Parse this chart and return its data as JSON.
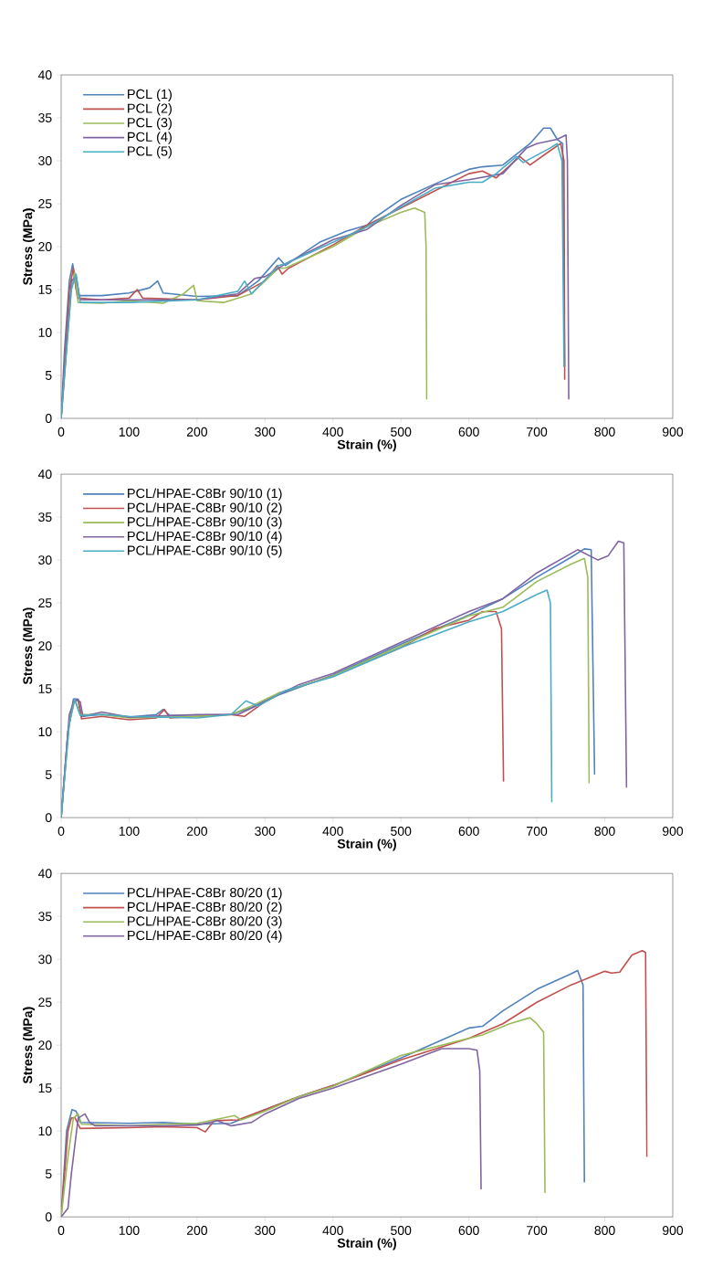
{
  "chart_data": [
    {
      "type": "line",
      "xlabel": "Strain (%)",
      "ylabel": "Stress (MPa)",
      "xlim": [
        0,
        900
      ],
      "ylim": [
        0,
        40
      ],
      "xticks": [
        0,
        100,
        200,
        300,
        400,
        500,
        600,
        700,
        800,
        900
      ],
      "yticks": [
        0,
        5,
        10,
        15,
        20,
        25,
        30,
        35,
        40
      ],
      "legend": "top left",
      "series": [
        {
          "name": "PCL (1)",
          "color": "#4f81bd",
          "x": [
            0,
            5,
            12,
            17,
            22,
            26,
            60,
            100,
            130,
            142,
            150,
            200,
            260,
            290,
            320,
            330,
            380,
            420,
            450,
            460,
            500,
            550,
            600,
            620,
            650,
            690,
            710,
            720,
            730,
            738,
            741
          ],
          "values": [
            0,
            8,
            16,
            18,
            15,
            14.3,
            14.3,
            14.6,
            15.2,
            16,
            14.6,
            14.2,
            14.3,
            16,
            18.7,
            17.8,
            20.5,
            21.8,
            22.5,
            23.3,
            25.5,
            27.3,
            29,
            29.3,
            29.5,
            32,
            33.8,
            33.8,
            32.5,
            32,
            6
          ]
        },
        {
          "name": "PCL (2)",
          "color": "#c0504d",
          "x": [
            0,
            12,
            18,
            24,
            60,
            100,
            112,
            120,
            200,
            260,
            300,
            318,
            325,
            335,
            400,
            450,
            500,
            550,
            600,
            620,
            640,
            675,
            690,
            720,
            735,
            740,
            741
          ],
          "values": [
            0,
            15,
            17.5,
            14,
            13.8,
            14,
            15,
            14,
            13.8,
            14.3,
            16,
            17.8,
            16.8,
            17.5,
            20.2,
            22.5,
            24.5,
            26.5,
            28.5,
            28.8,
            28,
            30.5,
            29.5,
            31.2,
            32,
            30,
            4.5
          ]
        },
        {
          "name": "PCL (3)",
          "color": "#9bbb59",
          "x": [
            0,
            15,
            20,
            25,
            60,
            100,
            150,
            180,
            195,
            200,
            240,
            280,
            320,
            330,
            400,
            450,
            500,
            520,
            535,
            537,
            538
          ],
          "values": [
            0,
            15,
            17,
            13.5,
            13.4,
            13.7,
            13.4,
            14.5,
            15.5,
            13.7,
            13.5,
            14.5,
            17.5,
            17.5,
            20,
            22.3,
            24,
            24.5,
            24,
            20,
            2.2
          ]
        },
        {
          "name": "PCL (4)",
          "color": "#8064a2",
          "x": [
            0,
            15,
            22,
            28,
            100,
            200,
            260,
            285,
            300,
            330,
            400,
            450,
            500,
            550,
            600,
            650,
            685,
            700,
            730,
            743,
            745,
            747
          ],
          "values": [
            0,
            16,
            16.5,
            13.8,
            13.8,
            13.8,
            14.5,
            16.3,
            16.5,
            18,
            20.8,
            22,
            24.8,
            27.2,
            27.8,
            28.5,
            31.5,
            32,
            32.5,
            33,
            30,
            2.2
          ]
        },
        {
          "name": "PCL (5)",
          "color": "#4bacc6",
          "x": [
            0,
            15,
            22,
            28,
            100,
            200,
            260,
            270,
            280,
            320,
            330,
            400,
            450,
            500,
            550,
            600,
            620,
            640,
            670,
            680,
            720,
            730,
            737,
            740
          ],
          "values": [
            0,
            15,
            16.8,
            13.5,
            13.5,
            13.8,
            14.8,
            16,
            14.5,
            17.8,
            18,
            20.5,
            22.3,
            24.6,
            26.8,
            27.5,
            27.5,
            28.5,
            30.5,
            29.8,
            31.5,
            32,
            30,
            6
          ]
        }
      ]
    },
    {
      "type": "line",
      "xlabel": "Strain (%)",
      "ylabel": "Stress (MPa)",
      "xlim": [
        0,
        900
      ],
      "ylim": [
        0,
        40
      ],
      "xticks": [
        0,
        100,
        200,
        300,
        400,
        500,
        600,
        700,
        800,
        900
      ],
      "yticks": [
        0,
        5,
        10,
        15,
        20,
        25,
        30,
        35,
        40
      ],
      "legend": "top left",
      "series": [
        {
          "name": "PCL/HPAE-C8Br 90/10 (1)",
          "color": "#4f81bd",
          "x": [
            0,
            10,
            18,
            25,
            30,
            60,
            100,
            140,
            150,
            160,
            250,
            280,
            310,
            400,
            500,
            600,
            650,
            700,
            750,
            770,
            780,
            785
          ],
          "values": [
            0,
            10,
            13.8,
            13.8,
            11.8,
            12,
            11.7,
            12,
            12.6,
            11.9,
            12,
            12.8,
            14,
            16.6,
            20.2,
            23.6,
            25.5,
            28,
            30.3,
            31.3,
            31.2,
            5
          ]
        },
        {
          "name": "PCL/HPAE-C8Br 90/10 (2)",
          "color": "#c0504d",
          "x": [
            0,
            10,
            18,
            25,
            30,
            60,
            100,
            140,
            152,
            160,
            250,
            270,
            300,
            320,
            400,
            500,
            550,
            600,
            620,
            640,
            648,
            651
          ],
          "values": [
            0,
            10,
            13.5,
            13.7,
            11.5,
            11.8,
            11.4,
            11.6,
            12.6,
            11.6,
            12,
            11.8,
            13.5,
            14.5,
            16.5,
            19.8,
            22,
            23,
            24,
            24,
            22,
            4.2
          ]
        },
        {
          "name": "PCL/HPAE-C8Br 90/10 (3)",
          "color": "#9bbb59",
          "x": [
            0,
            12,
            20,
            28,
            60,
            100,
            200,
            250,
            280,
            320,
            400,
            500,
            600,
            650,
            700,
            750,
            770,
            775,
            777
          ],
          "values": [
            0,
            11,
            13.7,
            12,
            12,
            11.6,
            11.8,
            12,
            13,
            14.5,
            16.5,
            20,
            23.5,
            24.5,
            27.5,
            29.5,
            30.2,
            28,
            4
          ]
        },
        {
          "name": "PCL/HPAE-C8Br 90/10 (4)",
          "color": "#8064a2",
          "x": [
            0,
            12,
            20,
            28,
            32,
            60,
            100,
            200,
            260,
            300,
            350,
            400,
            500,
            600,
            650,
            700,
            760,
            790,
            805,
            820,
            828,
            832
          ],
          "values": [
            0,
            12,
            13.8,
            13.5,
            11.8,
            12.3,
            11.7,
            12,
            12,
            13.5,
            15.5,
            16.8,
            20.4,
            24,
            25.5,
            28.5,
            31.2,
            30,
            30.5,
            32.2,
            32,
            3.5
          ]
        },
        {
          "name": "PCL/HPAE-C8Br 90/10 (5)",
          "color": "#4bacc6",
          "x": [
            0,
            12,
            20,
            28,
            60,
            100,
            200,
            250,
            272,
            290,
            330,
            400,
            500,
            600,
            650,
            700,
            715,
            720,
            722
          ],
          "values": [
            0,
            11,
            13.8,
            11.9,
            12,
            11.8,
            11.6,
            12,
            13.6,
            13,
            14.8,
            16.4,
            19.8,
            22.8,
            24,
            26,
            26.5,
            25,
            1.8
          ]
        }
      ]
    },
    {
      "type": "line",
      "xlabel": "Strain (%)",
      "ylabel": "Stress (MPa)",
      "xlim": [
        0,
        900
      ],
      "ylim": [
        0,
        40
      ],
      "xticks": [
        0,
        100,
        200,
        300,
        400,
        500,
        600,
        700,
        800,
        900
      ],
      "yticks": [
        0,
        5,
        10,
        15,
        20,
        25,
        30,
        35,
        40
      ],
      "legend": "top left",
      "series": [
        {
          "name": "PCL/HPAE-C8Br 80/20 (1)",
          "color": "#4f81bd",
          "x": [
            0,
            8,
            16,
            22,
            28,
            100,
            150,
            200,
            250,
            300,
            350,
            400,
            500,
            600,
            620,
            650,
            700,
            750,
            760,
            768,
            770
          ],
          "values": [
            0,
            10,
            12.5,
            12.3,
            11,
            10.9,
            11,
            10.8,
            10.9,
            12.5,
            14,
            15.3,
            18.5,
            22,
            22.2,
            24,
            26.5,
            28.3,
            28.7,
            27,
            4
          ]
        },
        {
          "name": "PCL/HPAE-C8Br 80/20 (2)",
          "color": "#c0504d",
          "x": [
            0,
            10,
            15,
            20,
            28,
            100,
            150,
            200,
            212,
            225,
            260,
            300,
            350,
            400,
            500,
            600,
            650,
            700,
            750,
            800,
            810,
            822,
            840,
            855,
            860,
            862
          ],
          "values": [
            0,
            10,
            11.5,
            11.6,
            10.3,
            10.4,
            10.5,
            10.4,
            9.9,
            11.2,
            11.3,
            12.5,
            14,
            15.3,
            18.3,
            20.8,
            22.5,
            25,
            27,
            28.6,
            28.4,
            28.5,
            30.5,
            31,
            30.8,
            7
          ]
        },
        {
          "name": "PCL/HPAE-C8Br 80/20 (3)",
          "color": "#9bbb59",
          "x": [
            0,
            10,
            18,
            25,
            30,
            100,
            150,
            200,
            255,
            265,
            300,
            350,
            400,
            500,
            600,
            620,
            660,
            690,
            700,
            710,
            712
          ],
          "values": [
            0,
            7,
            11.5,
            12,
            10.8,
            10.6,
            10.8,
            10.9,
            11.8,
            11.3,
            12.3,
            14,
            15.2,
            18.8,
            20.8,
            21.2,
            22.5,
            23.2,
            22.5,
            21.5,
            2.8
          ]
        },
        {
          "name": "PCL/HPAE-C8Br 80/20 (4)",
          "color": "#8064a2",
          "x": [
            0,
            10,
            15,
            25,
            35,
            42,
            50,
            100,
            150,
            200,
            230,
            250,
            280,
            300,
            350,
            400,
            500,
            560,
            600,
            612,
            616,
            618
          ],
          "values": [
            0,
            1,
            5,
            11.5,
            12,
            11,
            10.6,
            10.6,
            10.6,
            10.7,
            11.2,
            10.6,
            11,
            12,
            13.8,
            15,
            17.8,
            19.6,
            19.6,
            19.4,
            17,
            3.2
          ]
        }
      ]
    }
  ]
}
